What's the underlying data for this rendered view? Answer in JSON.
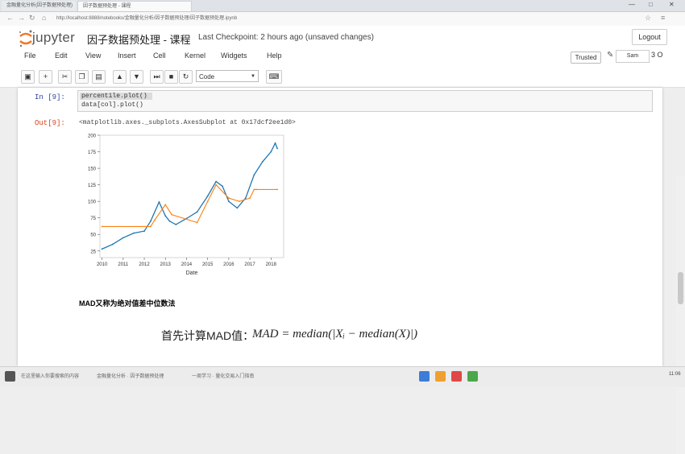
{
  "browser": {
    "tabs": [
      "金融量化分析(因子数据预处理)",
      "因子数据预处理 - 课程"
    ],
    "url": "http://localhost:8888/notebooks/金融量化分析/因子数据预处理/因子数据预处理.ipynb",
    "window_controls": [
      "—",
      "□",
      "✕"
    ]
  },
  "header": {
    "logo_text": "jupyter",
    "notebook_title": "因子数据预处理 - 课程",
    "checkpoint": "Last Checkpoint: 2 hours ago (unsaved changes)",
    "logout_label": "Logout",
    "trusted_label": "Trusted",
    "kernel_name": "Sam",
    "kernel_status": "3 O"
  },
  "menubar": [
    "File",
    "Edit",
    "View",
    "Insert",
    "Cell",
    "Kernel",
    "Widgets",
    "Help"
  ],
  "toolbar": {
    "buttons": [
      "save-icon",
      "plus-icon",
      "cut-icon",
      "copy-icon",
      "paste-icon",
      "arrow-up-icon",
      "arrow-down-icon",
      "step-forward-icon",
      "stop-icon",
      "restart-icon"
    ],
    "cell_type": "Code",
    "keyboard_icon": "keyboard-icon"
  },
  "cell": {
    "in_prompt": "In [9]:",
    "code_lines": [
      "percentile.plot()",
      "data[col].plot()"
    ],
    "out_prompt": "Out[9]:",
    "output_repr": "<matplotlib.axes._subplots.AxesSubplot at 0x17dcf2ee1d0>"
  },
  "chart_data": {
    "type": "line",
    "title": "",
    "xlabel": "Date",
    "ylabel": "",
    "ylim": [
      15,
      200
    ],
    "yticks": [
      25,
      50,
      75,
      100,
      125,
      150,
      175,
      200
    ],
    "xticklabels": [
      "2010",
      "2011",
      "2012",
      "2013",
      "2014",
      "2015",
      "2016",
      "2017",
      "2018"
    ],
    "series": [
      {
        "x": [
          2010.0,
          2010.5,
          2011.0,
          2011.5,
          2012.0,
          2012.3,
          2012.7,
          2013.0,
          2013.2,
          2013.5,
          2014.0,
          2014.5,
          2015.0,
          2015.4,
          2015.7,
          2016.0,
          2016.4,
          2016.8,
          2017.2,
          2017.6,
          2018.0,
          2018.2,
          2018.3
        ],
        "values": [
          28,
          35,
          45,
          52,
          55,
          70,
          99,
          78,
          70,
          65,
          74,
          84,
          108,
          130,
          123,
          100,
          90,
          105,
          140,
          160,
          175,
          188,
          180
        ],
        "color": "#1f77b4"
      },
      {
        "x": [
          2010.0,
          2012.3,
          2012.5,
          2013.0,
          2013.3,
          2014.5,
          2015.0,
          2015.4,
          2016.0,
          2016.5,
          2017.0,
          2017.2,
          2017.3,
          2018.3
        ],
        "values": [
          62,
          62,
          72,
          95,
          80,
          68,
          100,
          125,
          105,
          100,
          105,
          118,
          118,
          118
        ],
        "color": "#ff7f0e"
      }
    ]
  },
  "markdown": {
    "heading": "MAD又称为绝对值差中位数法",
    "formula_label": "首先计算MAD值：",
    "formula": "MAD = median(|Xᵢ − median(X)|)"
  },
  "taskbar": {
    "items": [
      "在这里输入你要搜索的内容",
      "金融量化分析 · 因子数据预处理",
      "一周学习 · 量化交易入门指南"
    ],
    "clock": "11:06"
  }
}
